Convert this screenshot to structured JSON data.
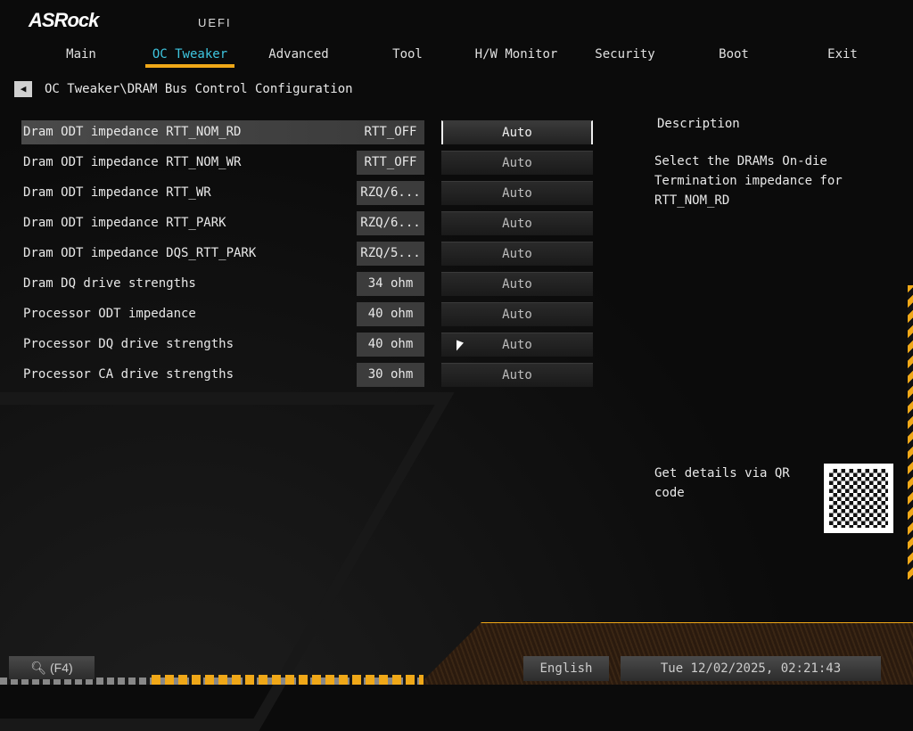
{
  "header": {
    "logo": "ASRock",
    "subtitle": "UEFI"
  },
  "tabs": [
    {
      "label": "Main"
    },
    {
      "label": "OC Tweaker",
      "active": true
    },
    {
      "label": "Advanced"
    },
    {
      "label": "Tool"
    },
    {
      "label": "H/W Monitor"
    },
    {
      "label": "Security"
    },
    {
      "label": "Boot"
    },
    {
      "label": "Exit"
    }
  ],
  "breadcrumb": "OC Tweaker\\DRAM Bus Control Configuration",
  "settings": [
    {
      "label": "Dram ODT impedance RTT_NOM_RD",
      "value": "RTT_OFF",
      "option": "Auto",
      "selected": true
    },
    {
      "label": "Dram ODT impedance RTT_NOM_WR",
      "value": "RTT_OFF",
      "option": "Auto"
    },
    {
      "label": "Dram ODT impedance RTT_WR",
      "value": "RZQ/6...",
      "option": "Auto"
    },
    {
      "label": "Dram ODT impedance RTT_PARK",
      "value": "RZQ/6...",
      "option": "Auto"
    },
    {
      "label": "Dram ODT impedance DQS_RTT_PARK",
      "value": "RZQ/5...",
      "option": "Auto"
    },
    {
      "label": "Dram DQ drive strengths",
      "value": "34 ohm",
      "option": "Auto"
    },
    {
      "label": "Processor ODT impedance",
      "value": "40 ohm",
      "option": "Auto"
    },
    {
      "label": "Processor DQ drive strengths",
      "value": "40 ohm",
      "option": "Auto"
    },
    {
      "label": "Processor CA drive strengths",
      "value": "30 ohm",
      "option": "Auto"
    }
  ],
  "description": {
    "title": "Description",
    "text": "Select the DRAMs On-die Termination impedance for RTT_NOM_RD",
    "qr_text": "Get details via QR code"
  },
  "footer": {
    "search": "(F4)",
    "language": "English",
    "datetime": "Tue 12/02/2025, 02:21:43"
  },
  "colors": {
    "accent": "#f0a818",
    "active_tab": "#3ec6e0"
  }
}
